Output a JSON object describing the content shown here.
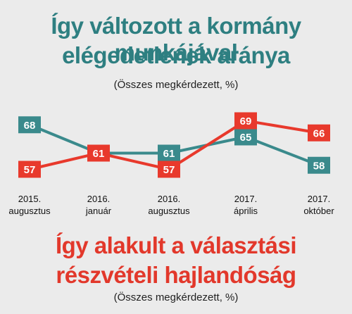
{
  "chart_data": {
    "type": "line",
    "categories": [
      [
        "2015.",
        "augusztus"
      ],
      [
        "2016.",
        "január"
      ],
      [
        "2016.",
        "augusztus"
      ],
      [
        "2017.",
        "április"
      ],
      [
        "2017.",
        "október"
      ]
    ],
    "series": [
      {
        "values": [
          68,
          61,
          61,
          65,
          58
        ],
        "color": "#3a8a8c"
      },
      {
        "values": [
          57,
          61,
          57,
          69,
          66
        ],
        "color": "#e8392c"
      }
    ],
    "titles": [
      {
        "lines": [
          "Így változott a kormány munkájával",
          "elégedetlenek aránya"
        ],
        "subtitle": "(Összes megkérdezett, %)",
        "color": "#2e7f81"
      },
      {
        "lines": [
          "Így alakult a választási",
          "részvételi hajlandóság"
        ],
        "subtitle": "(Összes megkérdezett, %)",
        "color": "#e2382b"
      }
    ],
    "ylim": [
      55,
      71
    ],
    "grid": false,
    "legend": "none"
  }
}
